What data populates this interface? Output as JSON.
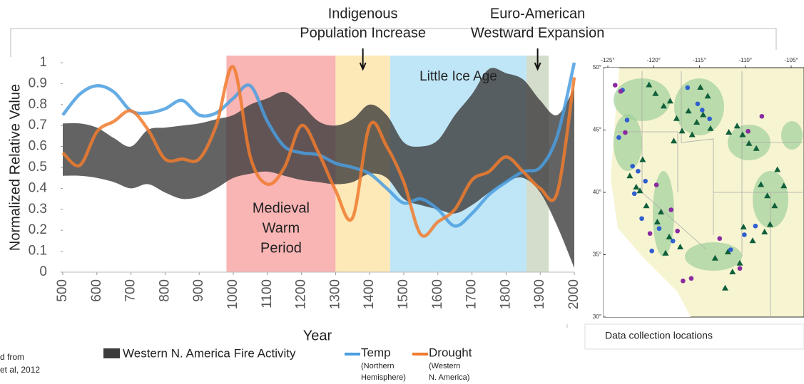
{
  "chart_data": {
    "type": "line",
    "xlabel": "Year",
    "ylabel": "Normalized Relative Value",
    "xlim": [
      500,
      2000
    ],
    "ylim": [
      0,
      1
    ],
    "xticks": [
      500,
      600,
      700,
      800,
      900,
      1000,
      1100,
      1200,
      1300,
      1400,
      1500,
      1600,
      1700,
      1800,
      1900,
      2000
    ],
    "yticks": [
      0,
      0.1,
      0.2,
      0.3,
      0.4,
      0.5,
      0.6,
      0.7,
      0.8,
      0.9,
      1
    ],
    "x": [
      500,
      550,
      600,
      650,
      700,
      750,
      800,
      850,
      900,
      950,
      1000,
      1050,
      1100,
      1150,
      1200,
      1250,
      1300,
      1350,
      1400,
      1450,
      1500,
      1550,
      1600,
      1650,
      1700,
      1750,
      1800,
      1850,
      1900,
      1950,
      2000
    ],
    "periods": [
      {
        "label": [
          "Medieval",
          "Warm",
          "Period"
        ],
        "start": 980,
        "end": 1300,
        "color": "#f9b4b4"
      },
      {
        "label": [
          "Indigenous",
          "Population Increase"
        ],
        "start": 1300,
        "end": 1460,
        "color": "#fde9b8",
        "arrow": true
      },
      {
        "label": [
          "Little Ice Age"
        ],
        "start": 1460,
        "end": 1860,
        "color": "#bfe6f7"
      },
      {
        "label": [
          "Euro-American",
          "Westward Expansion"
        ],
        "start": 1860,
        "end": 1925,
        "color": "#d4dccb",
        "arrow": true
      }
    ],
    "band": {
      "name": "Western N. America Fire Activity",
      "color": "#3c3c3c",
      "low": [
        0.46,
        0.46,
        0.45,
        0.43,
        0.4,
        0.42,
        0.38,
        0.35,
        0.36,
        0.4,
        0.45,
        0.47,
        0.48,
        0.46,
        0.44,
        0.43,
        0.42,
        0.43,
        0.47,
        0.45,
        0.35,
        0.32,
        0.3,
        0.28,
        0.32,
        0.38,
        0.43,
        0.45,
        0.38,
        0.22,
        0.02
      ],
      "high": [
        0.71,
        0.71,
        0.69,
        0.64,
        0.6,
        0.68,
        0.69,
        0.7,
        0.71,
        0.73,
        0.75,
        0.8,
        0.83,
        0.86,
        0.8,
        0.72,
        0.7,
        0.73,
        0.8,
        0.75,
        0.62,
        0.6,
        0.63,
        0.75,
        0.85,
        0.97,
        0.95,
        0.92,
        0.82,
        0.75,
        0.88
      ]
    },
    "series": [
      {
        "name": "Temp",
        "sublabel": [
          "(Northern",
          "Hemisphere)"
        ],
        "color": "#4a9ee0",
        "values": [
          0.75,
          0.85,
          0.89,
          0.86,
          0.77,
          0.76,
          0.78,
          0.82,
          0.75,
          0.76,
          0.83,
          0.89,
          0.72,
          0.6,
          0.57,
          0.56,
          0.52,
          0.5,
          0.47,
          0.4,
          0.33,
          0.35,
          0.3,
          0.22,
          0.28,
          0.37,
          0.43,
          0.48,
          0.5,
          0.65,
          1.0
        ]
      },
      {
        "name": "Drought",
        "sublabel": [
          "(Western",
          "N. America)"
        ],
        "color": "#f07b2e",
        "values": [
          0.57,
          0.51,
          0.67,
          0.72,
          0.77,
          0.68,
          0.54,
          0.54,
          0.54,
          0.7,
          0.98,
          0.55,
          0.42,
          0.5,
          0.7,
          0.57,
          0.39,
          0.26,
          0.7,
          0.6,
          0.43,
          0.18,
          0.24,
          0.3,
          0.44,
          0.48,
          0.55,
          0.48,
          0.4,
          0.38,
          0.93
        ]
      }
    ],
    "source": [
      "d from",
      "et al, 2012"
    ],
    "map": {
      "caption": "Data collection locations",
      "lonlim": [
        -125,
        -105
      ],
      "latlim": [
        30,
        50
      ],
      "lonticks": [
        {
          "value": -125,
          "label": "-125°"
        },
        {
          "value": -120,
          "label": "-120°"
        },
        {
          "value": -115,
          "label": "-115°"
        },
        {
          "value": -110,
          "label": "-110°"
        },
        {
          "value": -105,
          "label": "-105°"
        }
      ],
      "latticks": [
        {
          "value": 30,
          "label": "30°"
        },
        {
          "value": 35,
          "label": "35°"
        },
        {
          "value": 40,
          "label": "40°"
        },
        {
          "value": 45,
          "label": "45°"
        },
        {
          "value": 50,
          "label": "50°"
        }
      ],
      "markers": [
        {
          "shape": "triangle",
          "color": "#0f5f3a",
          "lon": [
            -120.5,
            -119.8,
            -118.9,
            -117.5,
            -116.2,
            -115.3,
            -114.6,
            -114.1,
            -113.8,
            -115.8,
            -116.9,
            -118.2,
            -117.8,
            -121.2,
            -122.6,
            -121.9,
            -120.8,
            -119.6,
            -118.3,
            -117.1,
            -111.8,
            -110.9,
            -110.3,
            -109.6,
            -108.8,
            -107.9,
            -107.3,
            -106.8,
            -107.6,
            -108.3,
            -109.2,
            -110.6,
            -111.4,
            -112.2,
            -111.9,
            -110.2,
            -106.5,
            -105.8,
            -121.5,
            -119.2,
            -118.7,
            -113.3,
            -114.9
          ],
          "lat": [
            48.6,
            47.9,
            46.9,
            45.9,
            46.5,
            45.6,
            46.2,
            47.7,
            45.1,
            44.6,
            44.9,
            47.3,
            44.1,
            42.6,
            41.3,
            40.4,
            38.9,
            37.6,
            36.4,
            35.6,
            44.8,
            45.3,
            44.6,
            43.9,
            43.5,
            36.8,
            37.4,
            38.9,
            39.7,
            40.6,
            36.1,
            34.3,
            33.6,
            32.3,
            35.2,
            37.2,
            41.8,
            40.5,
            40.1,
            38.4,
            35.1,
            34.7,
            48.4
          ]
        },
        {
          "shape": "circle",
          "color": "#2f5fcf",
          "lon": [
            -123.4,
            -122.9,
            -123.8,
            -122.3,
            -121.7,
            -120.9,
            -122.1,
            -116.3,
            -115.2,
            -114.7,
            -113.9,
            -121.3,
            -117.9,
            -120.2,
            -111.6,
            -108.9,
            -110.1,
            -119.4
          ],
          "lat": [
            48.2,
            45.8,
            44.4,
            42.1,
            41.7,
            40.9,
            39.9,
            48.4,
            47.1,
            46.6,
            45.9,
            37.9,
            36.1,
            35.3,
            35.4,
            37.3,
            36.6,
            37.1
          ]
        },
        {
          "shape": "circle",
          "color": "#8a2aa0",
          "lon": [
            -124.2,
            -123.6,
            -123.1,
            -119.7,
            -117.4,
            -116.8,
            -109.7,
            -108.2,
            -118.1,
            -120.4,
            -115.9,
            -112.8,
            -110.6
          ],
          "lat": [
            48.6,
            48.1,
            44.8,
            40.6,
            36.9,
            32.9,
            44.9,
            46.1,
            38.6,
            36.7,
            33.1,
            36.3,
            33.9
          ]
        }
      ]
    }
  }
}
